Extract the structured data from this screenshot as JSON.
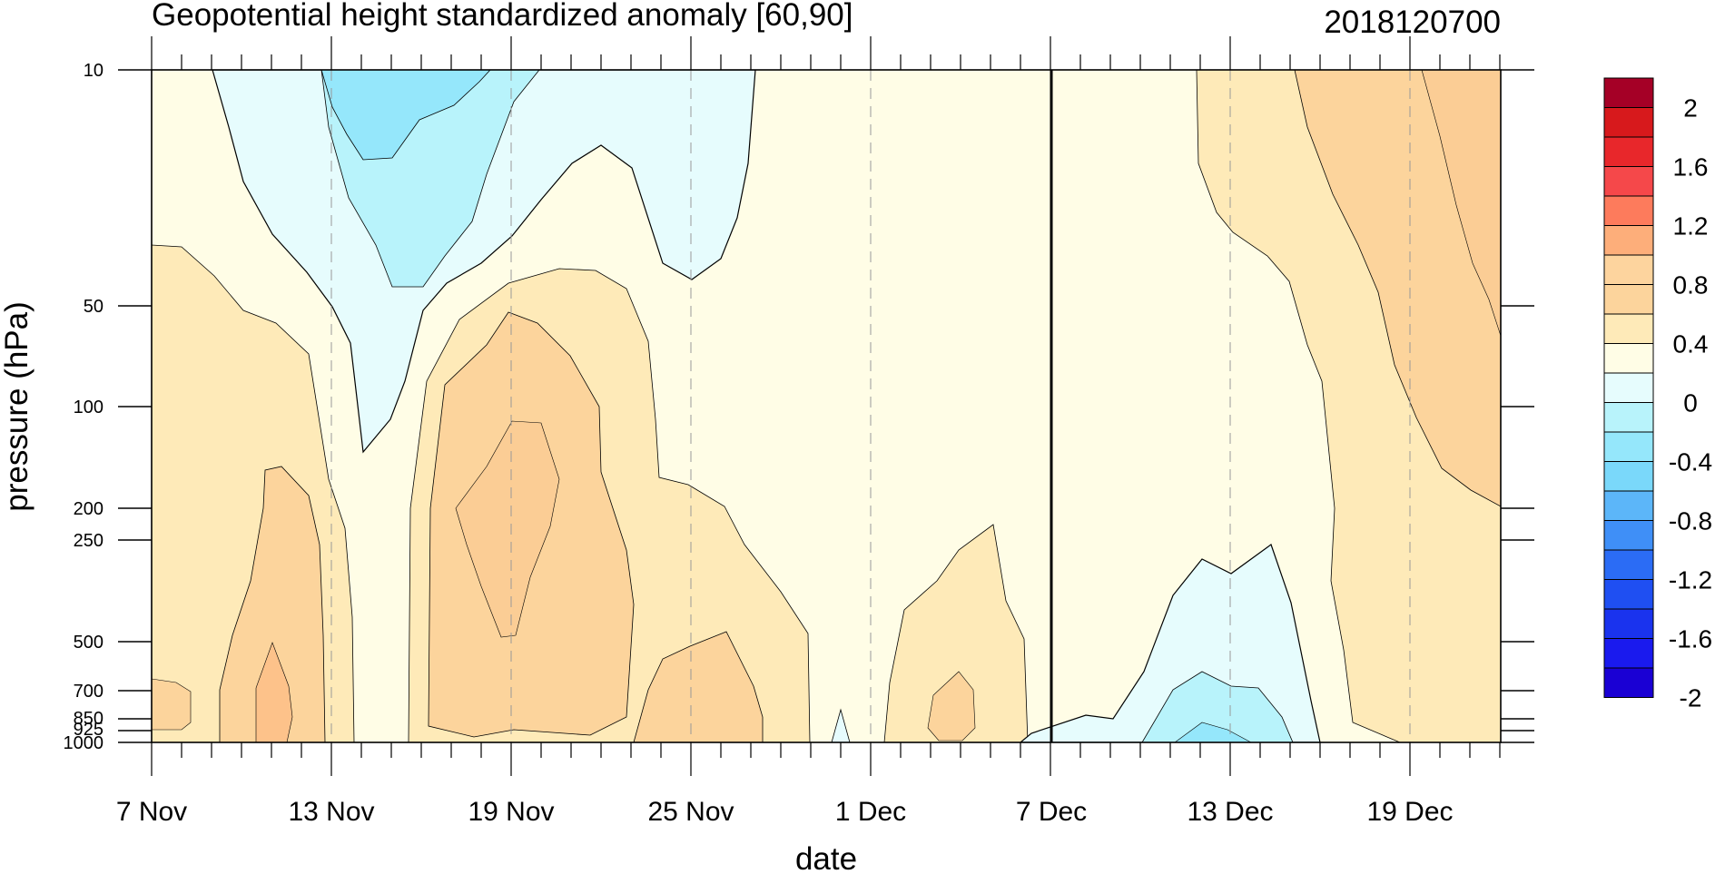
{
  "chart_data": {
    "type": "heatmap",
    "title": "Geopotential height standardized anomaly [60,90]",
    "date_label": "2018120700",
    "xlabel": "date",
    "ylabel": "pressure (hPa)",
    "x_tick_labels": [
      "7 Nov",
      "13 Nov",
      "19 Nov",
      "25 Nov",
      "1 Dec",
      "7 Dec",
      "13 Dec",
      "19 Dec"
    ],
    "x_range_days": [
      "2018-11-07",
      "2018-12-22"
    ],
    "current_date": "2018-12-07",
    "y_tick_labels": [
      "10",
      "50",
      "100",
      "200",
      "250",
      "500",
      "700",
      "850",
      "925",
      "1000"
    ],
    "y_scale": "log",
    "colorbar": {
      "labels": [
        "2",
        "1.6",
        "1.2",
        "0.8",
        "0.4",
        "0",
        "-0.4",
        "-0.8",
        "-1.2",
        "-1.6",
        "-2"
      ],
      "levels": [
        2.2,
        2.0,
        1.8,
        1.6,
        1.4,
        1.2,
        1.0,
        0.8,
        0.6,
        0.4,
        0.2,
        0,
        -0.2,
        -0.4,
        -0.6,
        -0.8,
        -1.0,
        -1.2,
        -1.4,
        -1.6,
        -1.8,
        -2.0,
        -2.2
      ],
      "colors": [
        "#a50026",
        "#d7191c",
        "#e8272b",
        "#f5484a",
        "#fd7b5c",
        "#fdae7a",
        "#fdd49e",
        "#fcd49c",
        "#feeab8",
        "#fffde6",
        "#e6fcfd",
        "#b8f3fb",
        "#95e7fb",
        "#7ad8fa",
        "#5cb6f9",
        "#3f8ff7",
        "#2b6cf5",
        "#1f4ff2",
        "#1a33ee",
        "#1a1aee",
        "#1a00d4"
      ]
    },
    "regions_description": "Pressure-time section of standardized anomaly; negative anomalies aloft mid-November and mid-December near surface, positive anomalies mid-troposphere late November and upper levels mid-December."
  }
}
